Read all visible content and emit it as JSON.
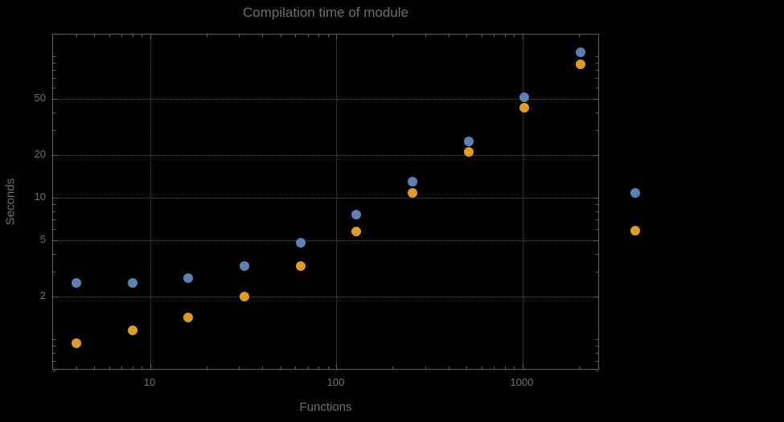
{
  "colors": {
    "background": "#000000",
    "text": "#6f6f6f",
    "frame": "#606060",
    "grid": "#525252",
    "series1": "#5E81B5",
    "series2": "#E19C24"
  },
  "chart_data": {
    "type": "scatter",
    "title": "Compilation time of module",
    "xlabel": "Functions",
    "ylabel": "Seconds",
    "x_scale": "log",
    "y_scale": "log",
    "grid": true,
    "legend_position": "right-outside",
    "x_range": [
      3.0,
      2600
    ],
    "y_range": [
      0.6,
      142
    ],
    "x_ticks": [
      10,
      100,
      1000
    ],
    "x_tick_labels": [
      "10",
      "100",
      "1000"
    ],
    "y_ticks": [
      2,
      5,
      10,
      20,
      50
    ],
    "y_tick_labels": [
      "2",
      "5",
      "10",
      "20",
      "50"
    ],
    "x": [
      4,
      8,
      16,
      32,
      64,
      128,
      256,
      512,
      1024,
      2048
    ],
    "series": [
      {
        "name": "series-1-blue",
        "color": "#5E81B5",
        "values": [
          2.5,
          2.5,
          2.7,
          3.3,
          4.8,
          7.6,
          13,
          25,
          51,
          107
        ]
      },
      {
        "name": "series-2-orange",
        "color": "#E19C24",
        "values": [
          0.94,
          1.15,
          1.42,
          2.0,
          3.3,
          5.8,
          10.8,
          21,
          43,
          88
        ]
      }
    ]
  },
  "legend": {
    "markers": [
      {
        "name": "legend-marker-series-1",
        "color": "#5E81B5"
      },
      {
        "name": "legend-marker-series-2",
        "color": "#E19C24"
      }
    ]
  }
}
